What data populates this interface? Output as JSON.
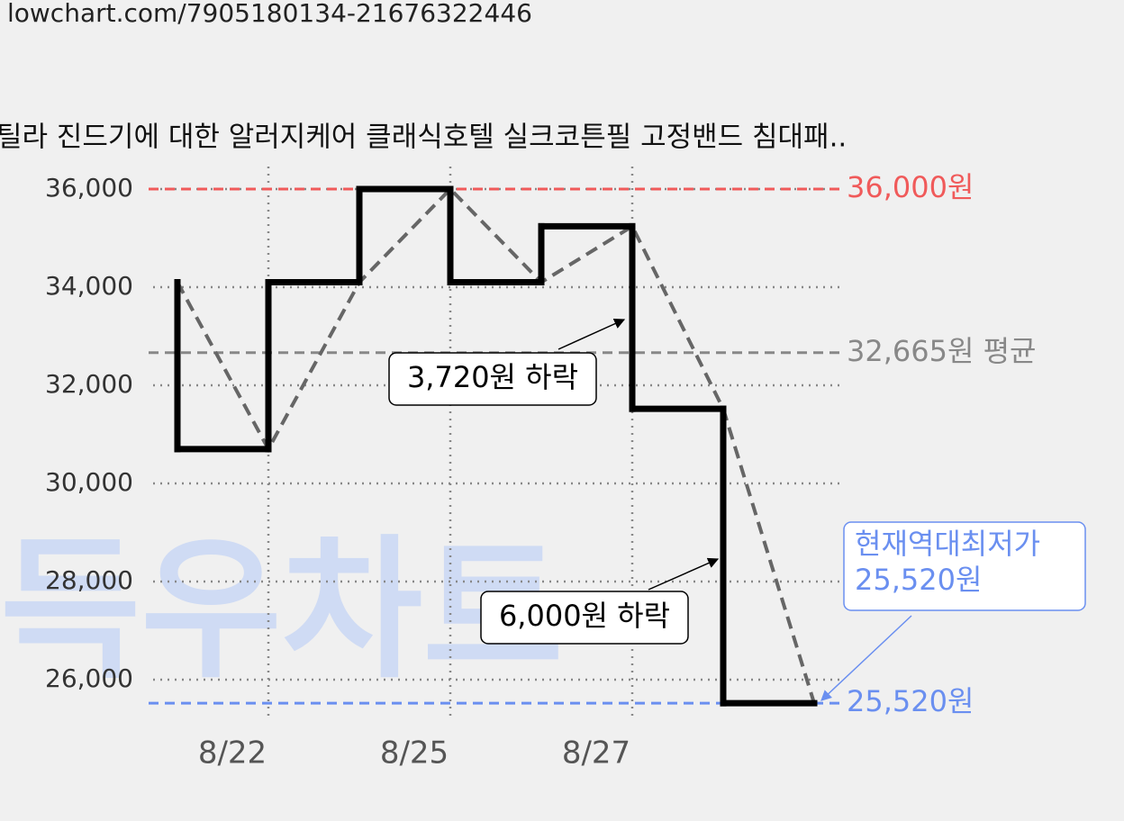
{
  "url": "lowchart.com/7905180134-21676322446",
  "chart_data": {
    "type": "step-line",
    "title": "틸라 진드기에 대한 알러지케어 클래식호텔 실크코튼필 고정밴드 침대패..",
    "watermark": "득우차트",
    "categories": [
      null,
      "8/22",
      null,
      "8/25",
      null,
      "8/27",
      null,
      null
    ],
    "series": [
      {
        "color": "#000000",
        "trend_color": "#666666",
        "values": [
          34100,
          30700,
          34100,
          36000,
          34100,
          35240,
          31520,
          25520
        ]
      }
    ],
    "ylim": [
      25200,
      36400
    ],
    "yticks": [
      {
        "value": 26000,
        "label": "26,000"
      },
      {
        "value": 28000,
        "label": "28,000"
      },
      {
        "value": 30000,
        "label": "30,000"
      },
      {
        "value": 32000,
        "label": "32,000"
      },
      {
        "value": 34000,
        "label": "34,000"
      },
      {
        "value": 36000,
        "label": "36,000"
      }
    ],
    "grid": true,
    "reference_lines": [
      {
        "value": 36000,
        "label": "36,000원",
        "color": "#f05a5a"
      },
      {
        "value": 32665,
        "label": "32,665원 평균",
        "color": "#888888"
      },
      {
        "value": 25520,
        "label": "25,520원",
        "color": "#6a8ff0"
      }
    ],
    "annotations": [
      {
        "text": "3,720원 하락"
      },
      {
        "text": "6,000원 하락"
      },
      {
        "text": [
          "현재역대최저가",
          "25,520원"
        ]
      }
    ]
  }
}
